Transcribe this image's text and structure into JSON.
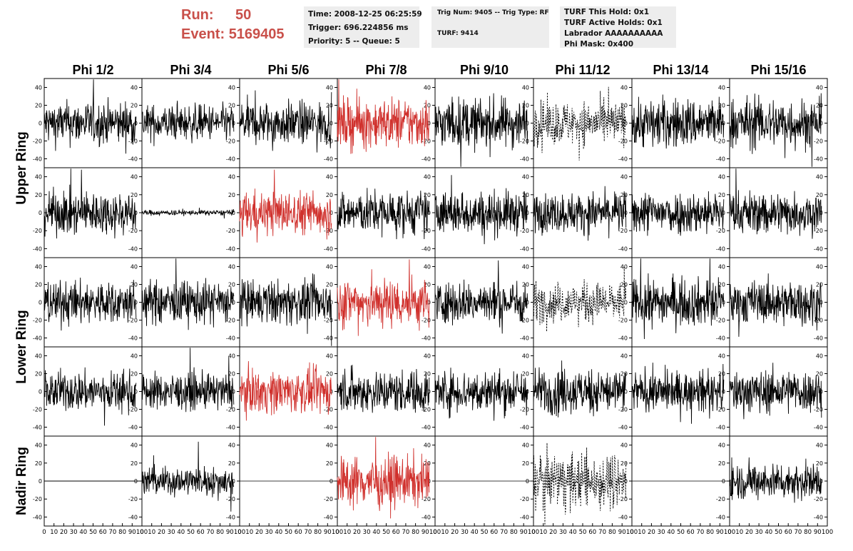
{
  "header": {
    "run_label": "Run:",
    "run_value": "50",
    "event_label": "Event:",
    "event_value": "5169405",
    "time": "Time: 2008-12-25 06:25:59",
    "trigger": "Trigger: 696.224856 ms",
    "priority": "Priority: 5 -- Queue: 5",
    "trig_num": "Trig Num: 9405 -- Trig Type: RF",
    "turf": "TURF: 9414",
    "turf_hold": "TURF This Hold: 0x1",
    "turf_active": "TURF Active Holds: 0x1",
    "labrador": "Labrador AAAAAAAAAA",
    "phi_mask": "Phi Mask: 0x400"
  },
  "colors": {
    "header_text": "#c9504a",
    "trace_normal": "#000000",
    "trace_highlight": "#d0312d",
    "info_bg": "#ededed"
  },
  "chart_data": {
    "type": "line",
    "columns": [
      "Phi 1/2",
      "Phi 3/4",
      "Phi 5/6",
      "Phi 7/8",
      "Phi 9/10",
      "Phi 11/12",
      "Phi 13/14",
      "Phi 15/16"
    ],
    "rows": [
      "Upper Ring",
      "Upper Ring",
      "Lower Ring",
      "Lower Ring",
      "Nadir Ring"
    ],
    "row_labels": [
      "Upper Ring",
      "Lower Ring",
      "Nadir Ring"
    ],
    "xlim": [
      0,
      100
    ],
    "ylim": [
      -50,
      50
    ],
    "y_ticks": [
      -40,
      -20,
      0,
      20,
      40
    ],
    "y_tick_labels": [
      "-40",
      "-20",
      "0",
      "20",
      "40"
    ],
    "x_ticks": [
      0,
      10,
      20,
      30,
      40,
      50,
      60,
      70,
      80,
      90,
      100
    ],
    "x_tick_labels": [
      "0",
      "10",
      "20",
      "30",
      "40",
      "50",
      "60",
      "70",
      "80",
      "90",
      "100"
    ],
    "trace_x_range": [
      0,
      94
    ],
    "samples_per_trace": 260,
    "panel_traces": [
      [
        "normal",
        "normal",
        "normal",
        "highlight",
        "normal",
        "dashed",
        "normal",
        "normal"
      ],
      [
        "normal",
        "normal",
        "highlight",
        "normal",
        "normal",
        "normal",
        "normal",
        "normal"
      ],
      [
        "normal",
        "normal",
        "normal",
        "highlight",
        "normal",
        "dashed",
        "normal",
        "normal"
      ],
      [
        "normal",
        "normal",
        "highlight",
        "normal",
        "normal",
        "normal",
        "normal",
        "normal"
      ],
      [
        "flat",
        "normal",
        "none",
        "highlight",
        "none",
        "dashed",
        "none",
        "normal"
      ]
    ],
    "panel_amplitude": [
      [
        12,
        10,
        12,
        14,
        14,
        12,
        14,
        14
      ],
      [
        12,
        1.5,
        12,
        12,
        12,
        11,
        12,
        12
      ],
      [
        12,
        12,
        12,
        14,
        12,
        11,
        13,
        12
      ],
      [
        11,
        10,
        12,
        12,
        12,
        13,
        11,
        12
      ],
      [
        0,
        8,
        0,
        14,
        0,
        15,
        0,
        10
      ]
    ]
  }
}
